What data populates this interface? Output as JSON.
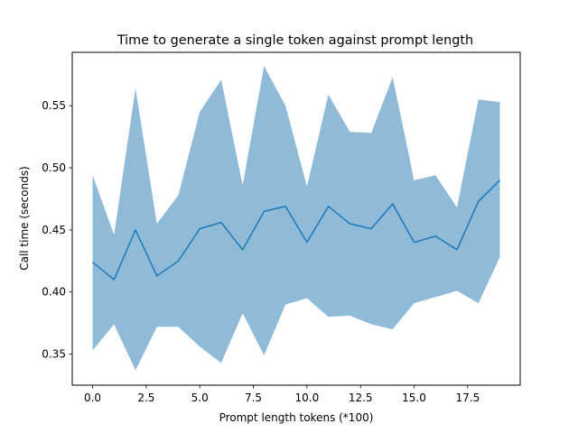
{
  "chart_data": {
    "type": "line",
    "title": "Time to generate a single token against prompt length",
    "xlabel": "Prompt length tokens (*100)",
    "ylabel": "Call time (seconds)",
    "xlim": [
      -0.95,
      19.95
    ],
    "ylim": [
      0.325,
      0.593
    ],
    "xticks": [
      0.0,
      2.5,
      5.0,
      7.5,
      10.0,
      12.5,
      15.0,
      17.5
    ],
    "xtick_labels": [
      "0.0",
      "2.5",
      "5.0",
      "7.5",
      "10.0",
      "12.5",
      "15.0",
      "17.5"
    ],
    "yticks": [
      0.35,
      0.4,
      0.45,
      0.5,
      0.55
    ],
    "ytick_labels": [
      "0.35",
      "0.40",
      "0.45",
      "0.50",
      "0.55"
    ],
    "grid": false,
    "x": [
      0,
      1,
      2,
      3,
      4,
      5,
      6,
      7,
      8,
      9,
      10,
      11,
      12,
      13,
      14,
      15,
      16,
      17,
      18,
      19
    ],
    "series": [
      {
        "values": [
          0.424,
          0.41,
          0.45,
          0.413,
          0.425,
          0.451,
          0.456,
          0.434,
          0.465,
          0.469,
          0.44,
          0.469,
          0.455,
          0.451,
          0.471,
          0.44,
          0.445,
          0.434,
          0.473,
          0.49
        ],
        "upper": [
          0.494,
          0.446,
          0.564,
          0.455,
          0.478,
          0.545,
          0.571,
          0.486,
          0.582,
          0.55,
          0.485,
          0.559,
          0.529,
          0.528,
          0.573,
          0.49,
          0.494,
          0.468,
          0.555,
          0.553
        ],
        "lower": [
          0.353,
          0.374,
          0.337,
          0.372,
          0.372,
          0.356,
          0.343,
          0.383,
          0.349,
          0.39,
          0.395,
          0.38,
          0.381,
          0.374,
          0.37,
          0.391,
          0.396,
          0.401,
          0.391,
          0.428
        ],
        "line_color": "#1f77b4",
        "band_color": "#1f77b4",
        "band_opacity": 0.5
      }
    ]
  }
}
